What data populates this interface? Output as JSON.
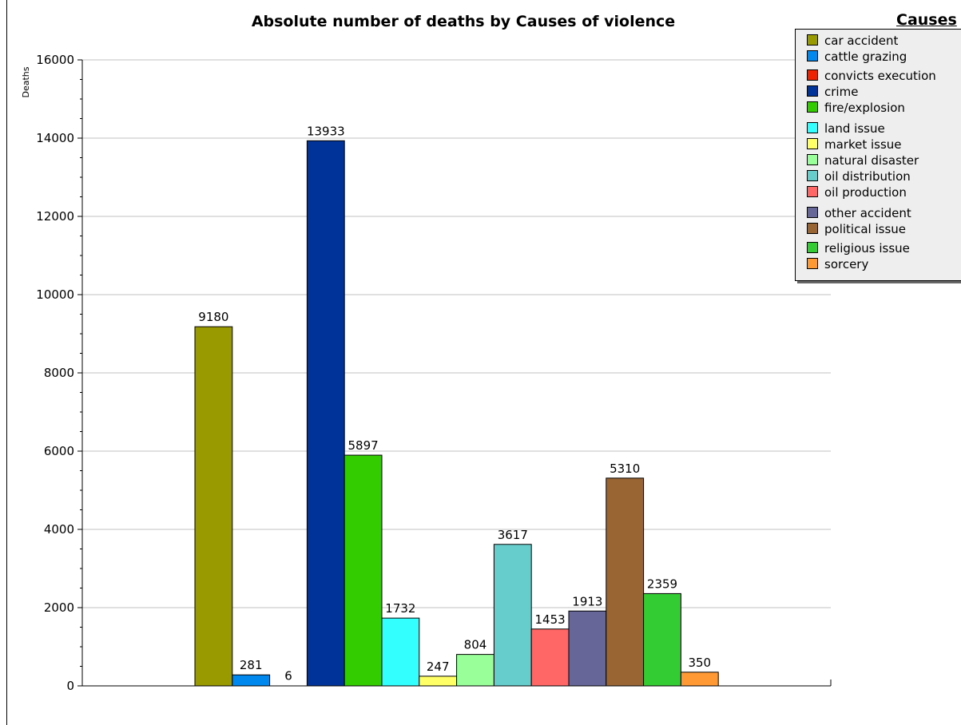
{
  "chart_data": {
    "type": "bar",
    "title": "Absolute number of deaths by Causes of violence",
    "ylabel": "Deaths",
    "xlabel": "",
    "ylim": [
      0,
      16000
    ],
    "y_ticks": [
      0,
      2000,
      4000,
      6000,
      8000,
      10000,
      12000,
      14000,
      16000
    ],
    "grid": true,
    "legend_title": "Causes",
    "legend_position": "top-right",
    "series": [
      {
        "name": "car accident",
        "value": 9180,
        "color": "#999900"
      },
      {
        "name": "cattle grazing",
        "value": 281,
        "color": "#0088ee"
      },
      {
        "name": "convicts execution",
        "value": 6,
        "color": "#ee2200"
      },
      {
        "name": "crime",
        "value": 13933,
        "color": "#003399"
      },
      {
        "name": "fire/explosion",
        "value": 5897,
        "color": "#33cc00"
      },
      {
        "name": "land issue",
        "value": 1732,
        "color": "#33ffff"
      },
      {
        "name": "market issue",
        "value": 247,
        "color": "#ffff66"
      },
      {
        "name": "natural disaster",
        "value": 804,
        "color": "#99ff99"
      },
      {
        "name": "oil distribution",
        "value": 3617,
        "color": "#66cccc"
      },
      {
        "name": "oil production",
        "value": 1453,
        "color": "#ff6666"
      },
      {
        "name": "other accident",
        "value": 1913,
        "color": "#666699"
      },
      {
        "name": "political issue",
        "value": 5310,
        "color": "#996633"
      },
      {
        "name": "religious issue",
        "value": 2359,
        "color": "#33cc33"
      },
      {
        "name": "sorcery",
        "value": 350,
        "color": "#ff9933"
      }
    ]
  }
}
